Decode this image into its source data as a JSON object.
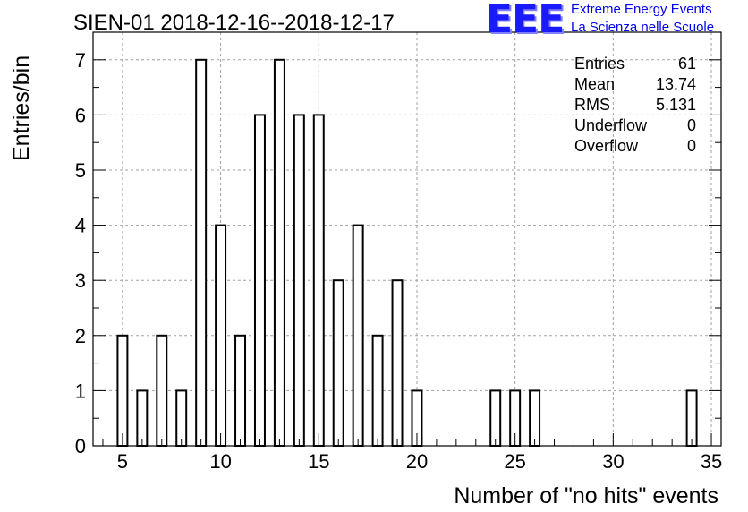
{
  "chart_data": {
    "type": "bar",
    "title": "SIEN-01 2018-12-16--2018-12-17",
    "xlabel": "Number of \"no hits\" events",
    "ylabel": "Entries/bin",
    "xlim": [
      3.5,
      35.5
    ],
    "ylim": [
      0,
      7.5
    ],
    "bin_width": 0.5,
    "x_ticks": [
      5,
      10,
      15,
      20,
      25,
      30,
      35
    ],
    "y_ticks": [
      0,
      1,
      2,
      3,
      4,
      5,
      6,
      7
    ],
    "grid": true,
    "bins": [
      {
        "x": 5,
        "value": 2
      },
      {
        "x": 6,
        "value": 1
      },
      {
        "x": 7,
        "value": 2
      },
      {
        "x": 8,
        "value": 1
      },
      {
        "x": 9,
        "value": 7
      },
      {
        "x": 10,
        "value": 4
      },
      {
        "x": 11,
        "value": 2
      },
      {
        "x": 12,
        "value": 6
      },
      {
        "x": 13,
        "value": 7
      },
      {
        "x": 14,
        "value": 6
      },
      {
        "x": 15,
        "value": 6
      },
      {
        "x": 16,
        "value": 3
      },
      {
        "x": 17,
        "value": 4
      },
      {
        "x": 18,
        "value": 2
      },
      {
        "x": 19,
        "value": 3
      },
      {
        "x": 20,
        "value": 1
      },
      {
        "x": 24,
        "value": 1
      },
      {
        "x": 25,
        "value": 1
      },
      {
        "x": 26,
        "value": 1
      },
      {
        "x": 34,
        "value": 1
      }
    ],
    "stats": [
      {
        "label": "Entries",
        "value": "61"
      },
      {
        "label": "Mean",
        "value": "13.74"
      },
      {
        "label": "RMS",
        "value": "5.131"
      },
      {
        "label": "Underflow",
        "value": "0"
      },
      {
        "label": "Overflow",
        "value": "0"
      }
    ],
    "colors": {
      "bar_edge": "#000000",
      "bar_fill": "#ffffff",
      "grid": "#a0a0a0"
    }
  },
  "logo": {
    "mark": "EEE",
    "line1": "Extreme Energy Events",
    "line2": "La Scienza nelle Scuole"
  }
}
